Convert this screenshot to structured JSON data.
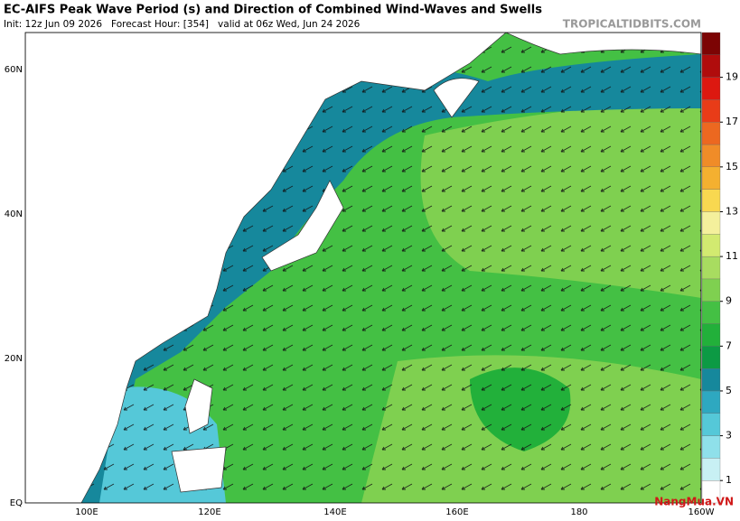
{
  "header": {
    "title": "EC-AIFS Peak Wave Period (s) and Direction of Combined Wind-Waves and Swells",
    "subtitle": "Init: 12z Jun 09 2026   Forecast Hour: [354]   valid at 06z Wed, Jun 24 2026",
    "source": "TROPICALTIDBITS.COM"
  },
  "map": {
    "lat_labels": [
      "60N",
      "40N",
      "20N",
      "EQ"
    ],
    "lon_labels": [
      "100E",
      "120E",
      "140E",
      "160E",
      "180",
      "160W"
    ]
  },
  "colorbar": {
    "lim": [
      0,
      21
    ],
    "ticks": [
      1,
      3,
      5,
      7,
      9,
      11,
      13,
      15,
      17,
      19
    ],
    "colors": [
      "#ffffff",
      "#c8f0f4",
      "#8fe0ea",
      "#55c8d8",
      "#2ea8c0",
      "#16889c",
      "#0c9a44",
      "#22b03a",
      "#44c044",
      "#7fd050",
      "#a8dc60",
      "#d2ea70",
      "#f4f09c",
      "#f8d850",
      "#f4b030",
      "#f08c28",
      "#ec6820",
      "#e83c18",
      "#dc1810",
      "#b00c0c",
      "#7c0404"
    ]
  },
  "watermark": "NangMua.VN"
}
